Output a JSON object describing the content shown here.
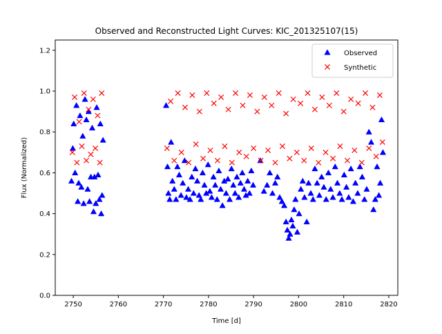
{
  "chart_data": {
    "type": "scatter",
    "title": "Observed and Reconstructed Light Curves: KIC_201325107(15)",
    "xlabel": "Time [d]",
    "ylabel": "Flux (Normalized)",
    "xlim": [
      2746,
      2822
    ],
    "ylim": [
      0.0,
      1.25
    ],
    "xticks": [
      2750,
      2760,
      2770,
      2780,
      2790,
      2800,
      2810,
      2820
    ],
    "yticks": [
      0.0,
      0.2,
      0.4,
      0.6,
      0.8,
      1.0,
      1.2
    ],
    "xtick_labels": [
      "2750",
      "2760",
      "2770",
      "2780",
      "2790",
      "2800",
      "2810",
      "2820"
    ],
    "ytick_labels": [
      "0.0",
      "0.2",
      "0.4",
      "0.6",
      "0.8",
      "1.0",
      "1.2"
    ],
    "grid": false,
    "legend_position": "top-right",
    "series": [
      {
        "name": "Observed",
        "marker": "triangle",
        "color": "#0000ff",
        "points": [
          [
            2749.6,
            0.56
          ],
          [
            2749.9,
            0.72
          ],
          [
            2750.1,
            0.84
          ],
          [
            2750.4,
            0.6
          ],
          [
            2750.7,
            0.93
          ],
          [
            2751.0,
            0.46
          ],
          [
            2751.2,
            0.55
          ],
          [
            2751.5,
            0.88
          ],
          [
            2751.8,
            0.53
          ],
          [
            2752.1,
            0.78
          ],
          [
            2752.3,
            0.45
          ],
          [
            2752.6,
            0.96
          ],
          [
            2752.9,
            0.86
          ],
          [
            2753.2,
            0.52
          ],
          [
            2753.4,
            0.9
          ],
          [
            2753.6,
            0.46
          ],
          [
            2753.9,
            0.58
          ],
          [
            2754.2,
            0.82
          ],
          [
            2754.5,
            0.41
          ],
          [
            2754.7,
            0.58
          ],
          [
            2755.0,
            0.45
          ],
          [
            2755.2,
            0.92
          ],
          [
            2755.5,
            0.59
          ],
          [
            2755.8,
            0.47
          ],
          [
            2756.0,
            0.84
          ],
          [
            2756.2,
            0.4
          ],
          [
            2756.4,
            0.49
          ],
          [
            2756.6,
            0.76
          ],
          [
            2770.6,
            0.93
          ],
          [
            2770.9,
            0.63
          ],
          [
            2771.1,
            0.5
          ],
          [
            2771.4,
            0.47
          ],
          [
            2771.7,
            0.75
          ],
          [
            2772.0,
            0.56
          ],
          [
            2772.4,
            0.52
          ],
          [
            2772.8,
            0.47
          ],
          [
            2773.1,
            0.63
          ],
          [
            2773.5,
            0.59
          ],
          [
            2773.9,
            0.49
          ],
          [
            2774.3,
            0.55
          ],
          [
            2774.7,
            0.66
          ],
          [
            2775.1,
            0.48
          ],
          [
            2775.5,
            0.52
          ],
          [
            2775.9,
            0.47
          ],
          [
            2776.3,
            0.58
          ],
          [
            2776.7,
            0.5
          ],
          [
            2777.1,
            0.62
          ],
          [
            2777.5,
            0.56
          ],
          [
            2777.9,
            0.49
          ],
          [
            2778.3,
            0.47
          ],
          [
            2778.7,
            0.6
          ],
          [
            2779.1,
            0.54
          ],
          [
            2779.5,
            0.5
          ],
          [
            2779.9,
            0.64
          ],
          [
            2780.3,
            0.51
          ],
          [
            2780.7,
            0.48
          ],
          [
            2781.1,
            0.58
          ],
          [
            2781.5,
            0.54
          ],
          [
            2781.9,
            0.47
          ],
          [
            2782.3,
            0.61
          ],
          [
            2782.7,
            0.52
          ],
          [
            2783.1,
            0.44
          ],
          [
            2783.5,
            0.56
          ],
          [
            2783.9,
            0.5
          ],
          [
            2784.3,
            0.57
          ],
          [
            2784.7,
            0.47
          ],
          [
            2785.1,
            0.62
          ],
          [
            2785.5,
            0.54
          ],
          [
            2785.9,
            0.5
          ],
          [
            2786.3,
            0.58
          ],
          [
            2786.7,
            0.48
          ],
          [
            2787.1,
            0.55
          ],
          [
            2787.5,
            0.6
          ],
          [
            2787.9,
            0.52
          ],
          [
            2788.3,
            0.49
          ],
          [
            2788.7,
            0.56
          ],
          [
            2789.1,
            0.5
          ],
          [
            2789.5,
            0.61
          ],
          [
            2789.9,
            0.54
          ],
          [
            2791.5,
            0.66
          ],
          [
            2792.3,
            0.51
          ],
          [
            2793.0,
            0.54
          ],
          [
            2793.6,
            0.6
          ],
          [
            2794.2,
            0.5
          ],
          [
            2794.8,
            0.55
          ],
          [
            2795.3,
            0.58
          ],
          [
            2795.8,
            0.48
          ],
          [
            2796.3,
            0.46
          ],
          [
            2796.8,
            0.44
          ],
          [
            2797.2,
            0.36
          ],
          [
            2797.5,
            0.32
          ],
          [
            2797.8,
            0.28
          ],
          [
            2798.1,
            0.3
          ],
          [
            2798.4,
            0.37
          ],
          [
            2798.7,
            0.34
          ],
          [
            2799.0,
            0.42
          ],
          [
            2799.3,
            0.47
          ],
          [
            2799.7,
            0.31
          ],
          [
            2800.1,
            0.4
          ],
          [
            2800.5,
            0.52
          ],
          [
            2800.9,
            0.56
          ],
          [
            2801.3,
            0.48
          ],
          [
            2801.8,
            0.36
          ],
          [
            2802.2,
            0.55
          ],
          [
            2802.7,
            0.5
          ],
          [
            2803.2,
            0.47
          ],
          [
            2803.6,
            0.62
          ],
          [
            2804.1,
            0.55
          ],
          [
            2804.6,
            0.49
          ],
          [
            2805.1,
            0.58
          ],
          [
            2805.6,
            0.53
          ],
          [
            2806.1,
            0.47
          ],
          [
            2806.6,
            0.6
          ],
          [
            2807.1,
            0.52
          ],
          [
            2807.6,
            0.48
          ],
          [
            2808.1,
            0.63
          ],
          [
            2808.6,
            0.55
          ],
          [
            2809.1,
            0.5
          ],
          [
            2809.6,
            0.47
          ],
          [
            2810.1,
            0.59
          ],
          [
            2810.6,
            0.53
          ],
          [
            2811.1,
            0.48
          ],
          [
            2811.6,
            0.62
          ],
          [
            2812.1,
            0.46
          ],
          [
            2812.6,
            0.55
          ],
          [
            2813.1,
            0.5
          ],
          [
            2813.6,
            0.63
          ],
          [
            2814.1,
            0.58
          ],
          [
            2814.6,
            0.47
          ],
          [
            2815.1,
            0.52
          ],
          [
            2815.6,
            0.8
          ],
          [
            2816.1,
            0.75
          ],
          [
            2816.6,
            0.42
          ],
          [
            2817.0,
            0.47
          ],
          [
            2817.4,
            0.63
          ],
          [
            2817.8,
            0.49
          ],
          [
            2818.1,
            0.55
          ],
          [
            2818.4,
            0.86
          ],
          [
            2818.7,
            0.7
          ]
        ]
      },
      {
        "name": "Synthetic",
        "marker": "x",
        "color": "#ff0000",
        "points": [
          [
            2749.8,
            0.7
          ],
          [
            2750.3,
            0.97
          ],
          [
            2750.8,
            0.65
          ],
          [
            2751.3,
            0.85
          ],
          [
            2751.9,
            0.73
          ],
          [
            2752.4,
            0.99
          ],
          [
            2752.9,
            0.66
          ],
          [
            2753.4,
            0.91
          ],
          [
            2753.9,
            0.69
          ],
          [
            2754.4,
            0.96
          ],
          [
            2754.9,
            0.72
          ],
          [
            2755.4,
            0.88
          ],
          [
            2755.9,
            0.65
          ],
          [
            2756.3,
            0.99
          ],
          [
            2770.8,
            0.72
          ],
          [
            2771.6,
            0.95
          ],
          [
            2772.4,
            0.66
          ],
          [
            2773.2,
            0.99
          ],
          [
            2774.0,
            0.7
          ],
          [
            2774.8,
            0.92
          ],
          [
            2775.6,
            0.65
          ],
          [
            2776.4,
            0.98
          ],
          [
            2777.2,
            0.74
          ],
          [
            2778.0,
            0.9
          ],
          [
            2778.8,
            0.67
          ],
          [
            2779.6,
            0.99
          ],
          [
            2780.4,
            0.71
          ],
          [
            2781.2,
            0.94
          ],
          [
            2782.0,
            0.66
          ],
          [
            2782.8,
            0.97
          ],
          [
            2783.6,
            0.73
          ],
          [
            2784.4,
            0.91
          ],
          [
            2785.2,
            0.65
          ],
          [
            2786.0,
            0.99
          ],
          [
            2786.8,
            0.7
          ],
          [
            2787.6,
            0.93
          ],
          [
            2788.4,
            0.68
          ],
          [
            2789.2,
            0.98
          ],
          [
            2790.0,
            0.72
          ],
          [
            2790.8,
            0.9
          ],
          [
            2791.6,
            0.66
          ],
          [
            2792.4,
            0.97
          ],
          [
            2793.2,
            0.71
          ],
          [
            2794.0,
            0.93
          ],
          [
            2794.8,
            0.65
          ],
          [
            2795.6,
            0.99
          ],
          [
            2796.4,
            0.73
          ],
          [
            2797.2,
            0.89
          ],
          [
            2798.0,
            0.67
          ],
          [
            2798.8,
            0.96
          ],
          [
            2799.6,
            0.7
          ],
          [
            2800.4,
            0.94
          ],
          [
            2801.2,
            0.66
          ],
          [
            2802.0,
            0.99
          ],
          [
            2802.8,
            0.72
          ],
          [
            2803.6,
            0.91
          ],
          [
            2804.4,
            0.65
          ],
          [
            2805.2,
            0.97
          ],
          [
            2806.0,
            0.7
          ],
          [
            2806.8,
            0.93
          ],
          [
            2807.6,
            0.67
          ],
          [
            2808.4,
            0.99
          ],
          [
            2809.2,
            0.73
          ],
          [
            2810.0,
            0.9
          ],
          [
            2810.8,
            0.66
          ],
          [
            2811.6,
            0.96
          ],
          [
            2812.4,
            0.71
          ],
          [
            2813.2,
            0.94
          ],
          [
            2814.0,
            0.65
          ],
          [
            2814.8,
            0.99
          ],
          [
            2815.6,
            0.72
          ],
          [
            2816.4,
            0.92
          ],
          [
            2817.2,
            0.68
          ],
          [
            2818.0,
            0.98
          ],
          [
            2818.6,
            0.75
          ]
        ]
      }
    ]
  }
}
